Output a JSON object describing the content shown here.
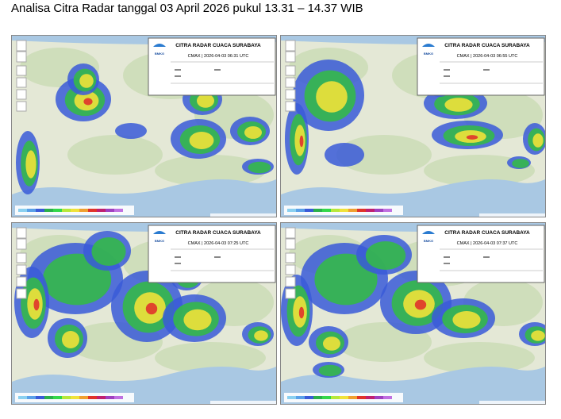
{
  "title": "Analisa Citra Radar tanggal 03 April 2026 pukul 13.31 – 14.37 WIB",
  "panels": [
    {
      "legend_title": "CITRA RADAR CUACA SURABAYA",
      "timestamp": "CMAX | 2026-04-03 06:31 UTC",
      "logo": "BMKG"
    },
    {
      "legend_title": "CITRA RADAR CUACA SURABAYA",
      "timestamp": "CMAX | 2026-04-03 06:55 UTC",
      "logo": "BMKG"
    },
    {
      "legend_title": "CITRA RADAR CUACA SURABAYA",
      "timestamp": "CMAX | 2026-04-03 07:25 UTC",
      "logo": "BMKG"
    },
    {
      "legend_title": "CITRA RADAR CUACA SURABAYA",
      "timestamp": "CMAX | 2026-04-03 07:37 UTC",
      "logo": "BMKG"
    }
  ]
}
